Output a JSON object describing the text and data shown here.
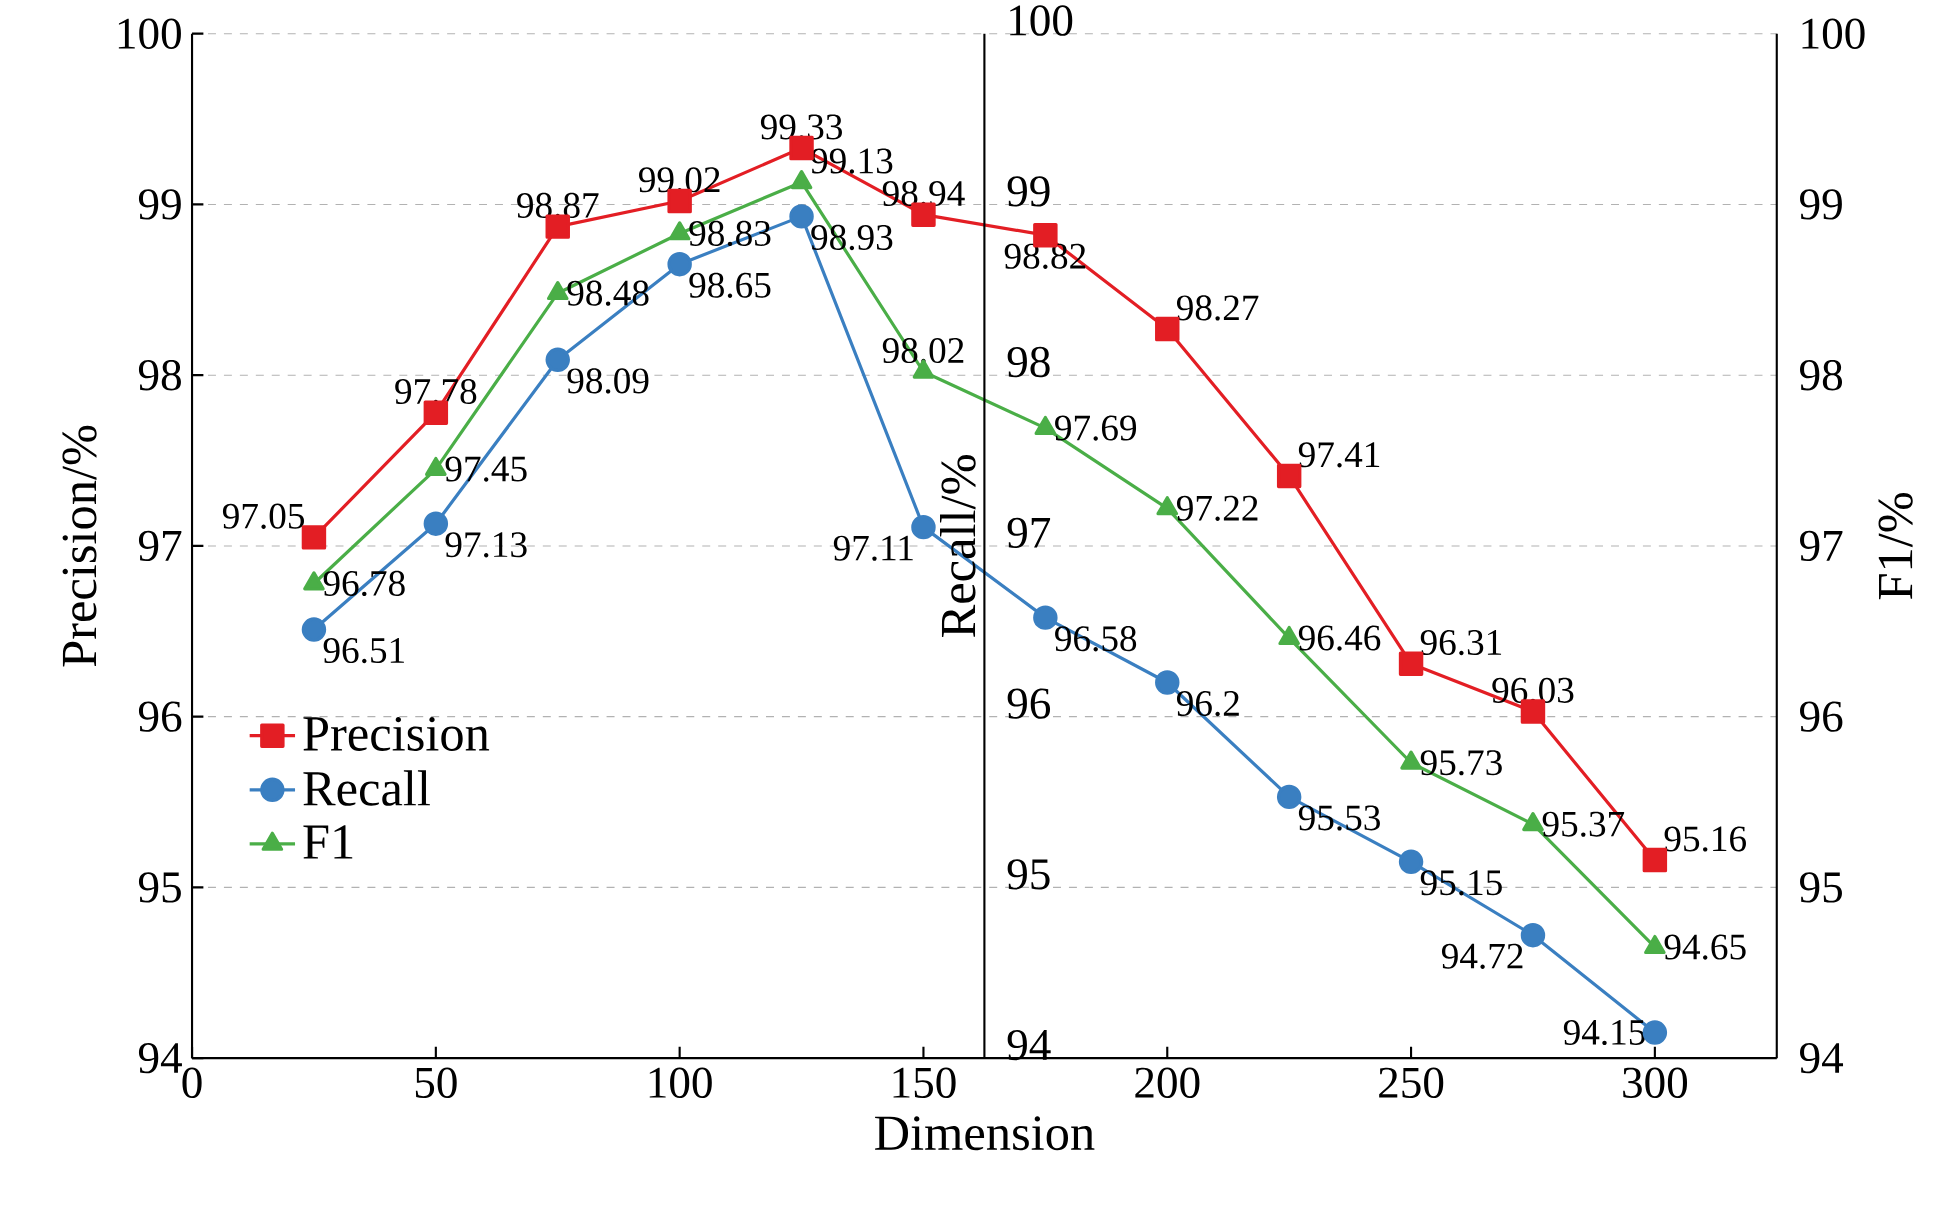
{
  "chart_data": {
    "type": "line",
    "xlabel": "Dimension",
    "ylabel": "Precision/%",
    "y2label": "F1/%",
    "y3label": "Recall/%",
    "x": [
      25,
      50,
      75,
      100,
      125,
      150,
      175,
      200,
      225,
      250,
      275,
      300
    ],
    "series": [
      {
        "name": "Precision",
        "color": "#e31e24",
        "marker": "square",
        "values": [
          97.05,
          97.78,
          98.87,
          99.02,
          99.33,
          98.94,
          98.82,
          98.27,
          97.41,
          96.31,
          96.03,
          95.16
        ]
      },
      {
        "name": "Recall",
        "color": "#3a7fc1",
        "marker": "circle",
        "axis": "y3",
        "values": [
          96.51,
          97.13,
          98.09,
          98.65,
          98.93,
          97.11,
          96.58,
          96.2,
          95.53,
          95.15,
          94.72,
          94.15
        ]
      },
      {
        "name": "F1",
        "color": "#4aae47",
        "marker": "triangle",
        "axis": "y2",
        "values": [
          96.78,
          97.45,
          98.48,
          98.83,
          99.13,
          98.02,
          97.69,
          97.22,
          96.46,
          95.73,
          95.37,
          94.65
        ]
      }
    ],
    "xlim": [
      0,
      325
    ],
    "xticks": [
      0,
      50,
      100,
      150,
      200,
      250,
      300
    ],
    "ylim": [
      94,
      100
    ],
    "yticks": [
      94,
      95,
      96,
      97,
      98,
      99,
      100
    ],
    "y2lim": [
      94,
      100
    ],
    "y2ticks": [
      94,
      95,
      96,
      97,
      98,
      99,
      100
    ],
    "y3lim": [
      94,
      100
    ],
    "y3ticks": [
      94,
      95,
      96,
      97,
      98,
      99,
      100
    ],
    "grid": "y",
    "legend": "bottom left",
    "data_labels": true,
    "line_style": "solid"
  }
}
